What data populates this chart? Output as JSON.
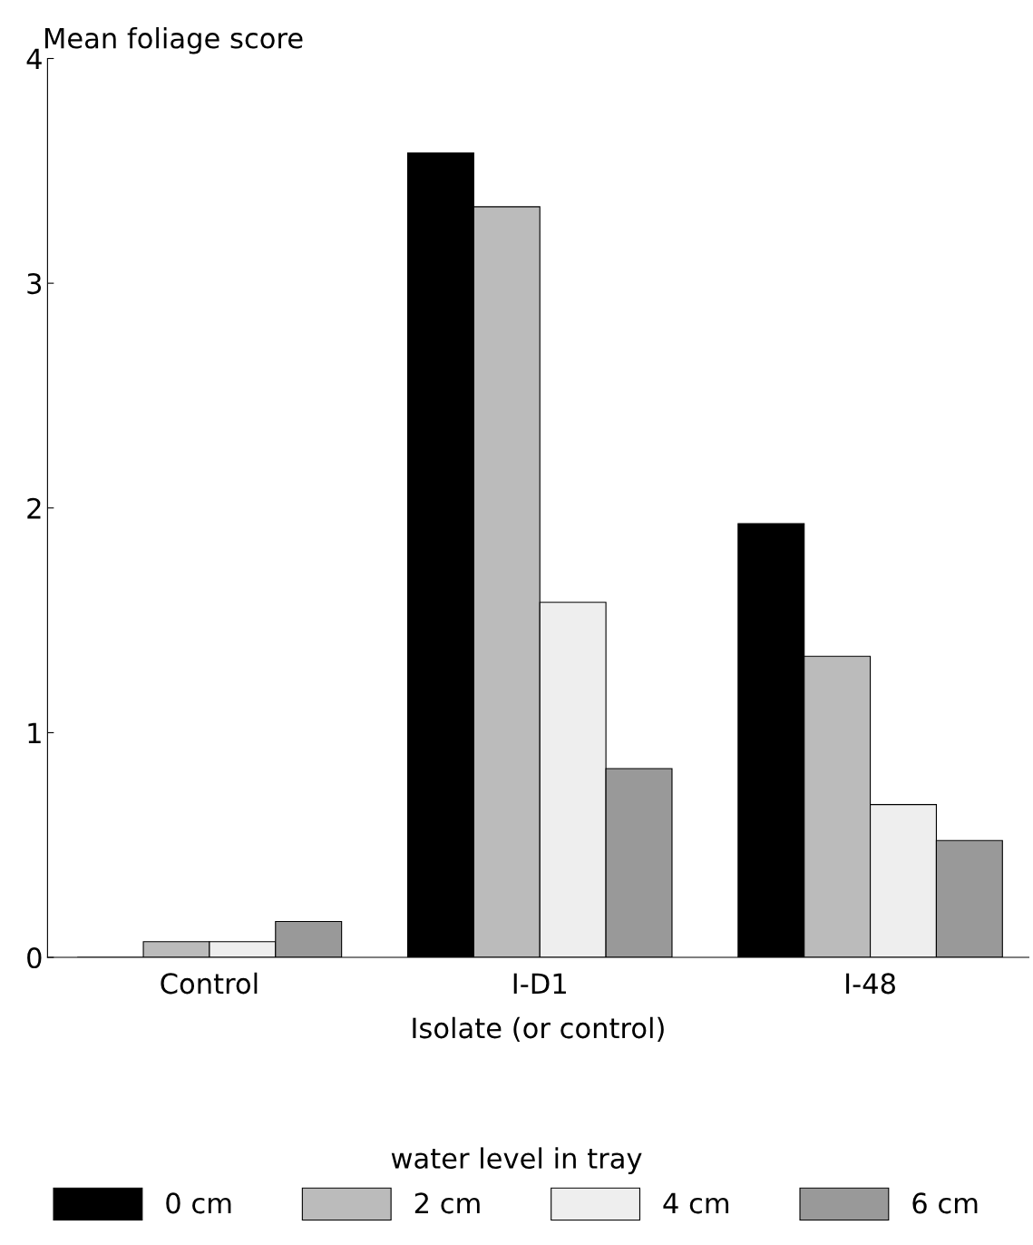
{
  "chart_data": {
    "type": "bar",
    "ylabel": "Mean foliage score",
    "xlabel": "Isolate (or control)",
    "legend_title": "water level in tray",
    "legend": "bottom",
    "grid": false,
    "categories": [
      "Control",
      "I-D1",
      "I-48"
    ],
    "ylim": [
      0,
      4
    ],
    "yticks": [
      0,
      1,
      2,
      3,
      4
    ],
    "series": [
      {
        "name": "0 cm",
        "color": "#000000",
        "values": [
          0,
          3.58,
          1.93
        ]
      },
      {
        "name": "2 cm",
        "color": "#bbbbbb",
        "values": [
          0.07,
          3.34,
          1.34
        ]
      },
      {
        "name": "4 cm",
        "color": "#eeeeee",
        "values": [
          0.07,
          1.58,
          0.68
        ]
      },
      {
        "name": "6 cm",
        "color": "#999999",
        "values": [
          0.16,
          0.84,
          0.52
        ]
      }
    ]
  }
}
